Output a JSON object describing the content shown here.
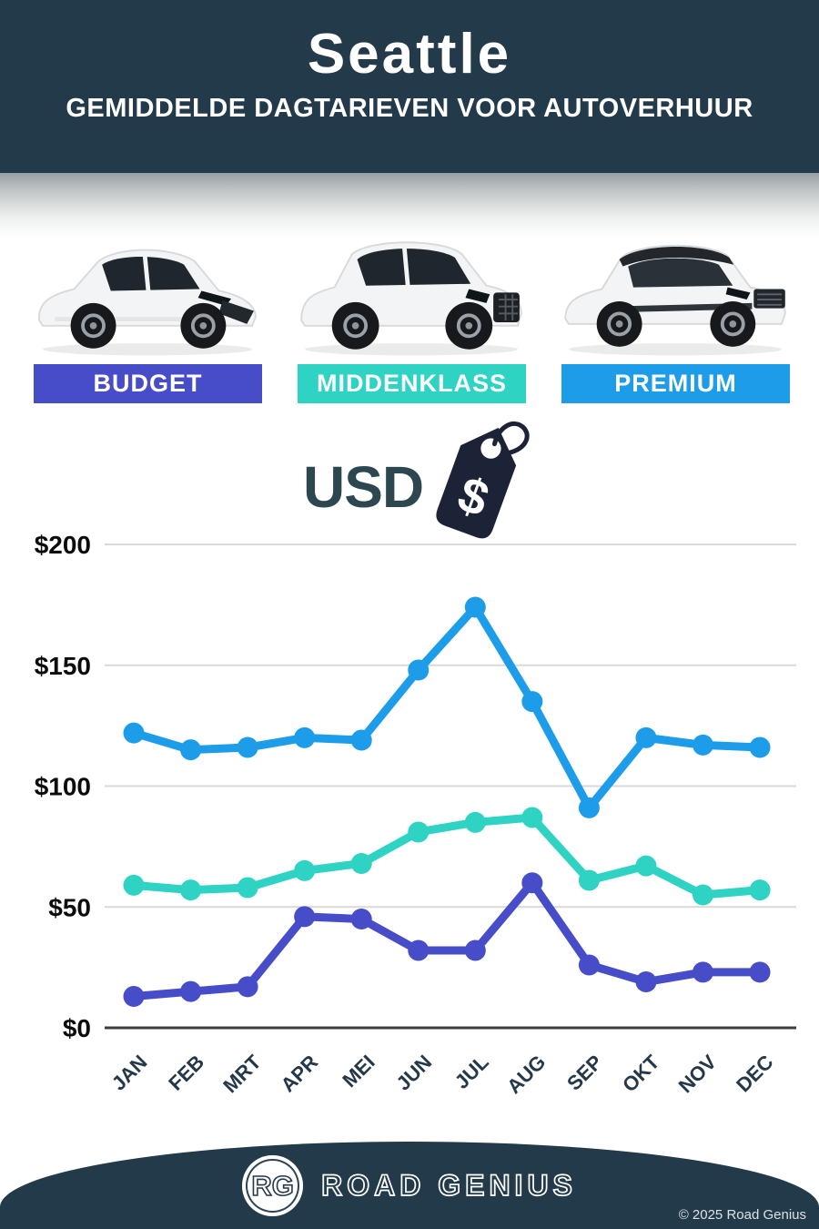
{
  "header": {
    "title": "Seattle",
    "subtitle": "GEMIDDELDE DAGTARIEVEN VOOR AUTOVERHUUR"
  },
  "categories": [
    {
      "label": "BUDGET",
      "color": "#474dc9"
    },
    {
      "label": "MIDDENKLASS",
      "color": "#2ed3c3"
    },
    {
      "label": "PREMIUM",
      "color": "#1d9de9"
    }
  ],
  "currency": {
    "label": "USD",
    "symbol": "$",
    "tag_color": "#1d2337"
  },
  "chart_data": {
    "type": "line",
    "categories": [
      "JAN",
      "FEB",
      "MRT",
      "APR",
      "MEI",
      "JUN",
      "JUL",
      "AUG",
      "SEP",
      "OKT",
      "NOV",
      "DEC"
    ],
    "series": [
      {
        "name": "PREMIUM",
        "color": "#1d9de9",
        "values": [
          122,
          115,
          116,
          120,
          119,
          148,
          174,
          135,
          91,
          120,
          117,
          116
        ]
      },
      {
        "name": "MIDDENKLASS",
        "color": "#2ed3c3",
        "values": [
          59,
          57,
          58,
          65,
          68,
          81,
          85,
          87,
          61,
          67,
          55,
          57
        ]
      },
      {
        "name": "BUDGET",
        "color": "#474dc9",
        "values": [
          13,
          15,
          17,
          46,
          45,
          32,
          32,
          60,
          26,
          19,
          23,
          23
        ]
      }
    ],
    "title": "",
    "xlabel": "",
    "ylabel": "USD",
    "ylim": [
      0,
      200
    ],
    "yticks": [
      "$200",
      "$150",
      "$100",
      "$50",
      "$0"
    ],
    "ytick_values": [
      200,
      150,
      100,
      50,
      0
    ],
    "grid": true,
    "legend_position": "none",
    "grid_color": "#d9d9d9",
    "axis_color": "#3d3d3d",
    "ytick_color": "#0c0c0c",
    "xtick_color": "#24384a"
  },
  "footer": {
    "logo_initials": "RG",
    "brand": "ROAD GENIUS",
    "copyright": "© 2025 Road Genius"
  },
  "colors": {
    "navy": "#233a4a",
    "background": "#ffffff"
  }
}
